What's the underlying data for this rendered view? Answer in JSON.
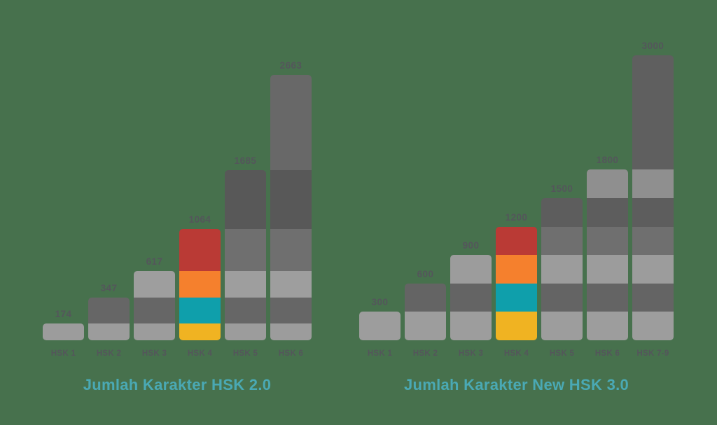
{
  "page": {
    "background_color": "#47714d",
    "label_color": "#54565b",
    "title_color": "#4aa9b4"
  },
  "chart_data": [
    {
      "type": "bar",
      "title": "Jumlah Karakter HSK 2.0",
      "categories": [
        "HSK 1",
        "HSK 2",
        "HSK 3",
        "HSK 4",
        "HSK 5",
        "HSK 6"
      ],
      "values": [
        174,
        347,
        617,
        1064,
        1685,
        2663
      ],
      "data_labels": true,
      "stacked": "each bar is subdivided at the cumulative totals of all lower levels",
      "stack_breakpoints": [
        174,
        347,
        617,
        1064,
        1685,
        2663
      ],
      "highlight_category": "HSK 4",
      "xlabel": "",
      "ylabel": "",
      "ylim": [
        0,
        2800
      ],
      "grid": false,
      "legend": false,
      "bar_style": {
        "gray_shades_bottom_to_top": [
          "#9c9c9c",
          "#666666",
          "#9e9e9e",
          "#6f6f6f",
          "#585858",
          "#686868"
        ],
        "highlight_shades_bottom_to_top": [
          "#f0b322",
          "#0f9fab",
          "#f5802d",
          "#ba3a35"
        ]
      }
    },
    {
      "type": "bar",
      "title": "Jumlah Karakter New HSK 3.0",
      "categories": [
        "HSK 1",
        "HSK 2",
        "HSK 3",
        "HSK 4",
        "HSK 5",
        "HSK 6",
        "HSK 7-9"
      ],
      "values": [
        300,
        600,
        900,
        1200,
        1500,
        1800,
        3000
      ],
      "data_labels": true,
      "stacked": "each bar is subdivided at the cumulative totals of all lower levels",
      "stack_breakpoints": [
        300,
        600,
        900,
        1200,
        1500,
        1800,
        3000
      ],
      "highlight_category": "HSK 4",
      "xlabel": "",
      "ylabel": "",
      "ylim": [
        0,
        3200
      ],
      "grid": false,
      "legend": false,
      "bar_style": {
        "gray_shades_bottom_to_top": [
          "#9d9d9d",
          "#646464",
          "#9c9c9c",
          "#6f6f6f",
          "#5d5d5d",
          "#8f8f8f",
          "#5f5f5f"
        ],
        "highlight_shades_bottom_to_top": [
          "#f0b322",
          "#0f9fab",
          "#f5802d",
          "#ba3a35"
        ]
      }
    }
  ]
}
